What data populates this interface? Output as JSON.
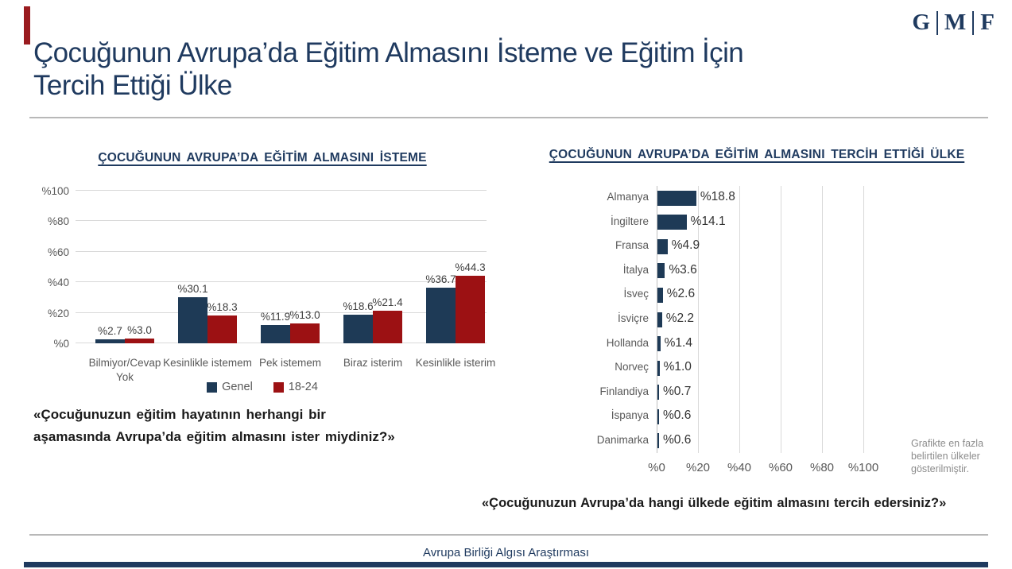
{
  "page": {
    "logo_letters": [
      "G",
      "M",
      "F"
    ],
    "title_line1": "Çocuğunun Avrupa’da Eğitim Almasını İsteme ve Eğitim İçin",
    "title_line2": "Tercih Ettiği Ülke",
    "footer": "Avrupa Birliği Algısı Araştırması",
    "accent_color": "#9a1b1f",
    "navy_color": "#1f3a5f"
  },
  "left_panel": {
    "quote_line1": "«Çocuğunuzun  eğitim hayatının  herhangi bir",
    "quote_line2": "aşamasında  Avrupa’da  eğitim almasını ister miydiniz?»"
  },
  "right_panel": {
    "note": "Grafikte en fazla belirtilen ülkeler gösterilmiştir.",
    "quote": "«Çocuğunuzun  Avrupa’da hangi ülkede eğitim almasını tercih edersiniz?»"
  },
  "chart_data": [
    {
      "type": "bar",
      "title": "ÇOCUĞUNUN  AVRUPA’DA EĞİTİM  ALMASINI İSTEME",
      "categories": [
        "Bilmiyor/Cevap Yok",
        "Kesinlikle istemem",
        "Pek istemem",
        "Biraz isterim",
        "Kesinlikle isterim"
      ],
      "series": [
        {
          "name": "Genel",
          "color": "#1e3a56",
          "values": [
            2.7,
            30.1,
            11.9,
            18.6,
            36.7
          ],
          "labels": [
            "%2.7",
            "%30.1",
            "%11.9",
            "%18.6",
            "%36.7"
          ]
        },
        {
          "name": "18-24",
          "color": "#9c1113",
          "values": [
            3.0,
            18.3,
            13.0,
            21.4,
            44.3
          ],
          "labels": [
            "%3.0",
            "%18.3",
            "%13.0",
            "%21.4",
            "%44.3"
          ]
        }
      ],
      "ylim": [
        0,
        100
      ],
      "y_tick_values": [
        0,
        20,
        40,
        60,
        80,
        100
      ],
      "y_tick_labels": [
        "%0",
        "%20",
        "%40",
        "%60",
        "%80",
        "%100"
      ],
      "grid": true,
      "legend_position": "bottom"
    },
    {
      "type": "bar-horizontal",
      "title": "ÇOCUĞUNUN  AVRUPA’DA EĞİTİM  ALMASINI TERCİH ETTİĞİ ÜLKE",
      "categories": [
        "Almanya",
        "İngiltere",
        "Fransa",
        "İtalya",
        "İsveç",
        "İsviçre",
        "Hollanda",
        "Norveç",
        "Finlandiya",
        "İspanya",
        "Danimarka"
      ],
      "values": [
        18.8,
        14.1,
        4.9,
        3.6,
        2.6,
        2.2,
        1.4,
        1.0,
        0.7,
        0.6,
        0.6
      ],
      "labels": [
        "%18.8",
        "%14.1",
        "%4.9",
        "%3.6",
        "%2.6",
        "%2.2",
        "%1.4",
        "%1.0",
        "%0.7",
        "%0.6",
        "%0.6"
      ],
      "bar_color": "#1e3a56",
      "xlim": [
        0,
        100
      ],
      "x_tick_values": [
        0,
        20,
        40,
        60,
        80,
        100
      ],
      "x_tick_labels": [
        "%0",
        "%20",
        "%40",
        "%60",
        "%80",
        "%100"
      ],
      "grid": true
    }
  ]
}
